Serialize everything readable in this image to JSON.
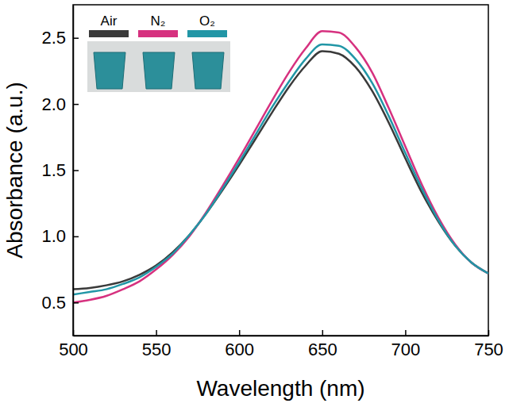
{
  "chart_data": {
    "type": "line",
    "x_label": "Wavelength (nm)",
    "y_label": "Absorbance (a.u.)",
    "x": [
      500,
      510,
      520,
      530,
      540,
      550,
      560,
      570,
      580,
      590,
      600,
      610,
      620,
      630,
      640,
      650,
      660,
      670,
      680,
      690,
      700,
      710,
      720,
      730,
      740,
      750
    ],
    "series": [
      {
        "name": "Air",
        "color": "#3a3a3a",
        "values": [
          0.6,
          0.61,
          0.63,
          0.66,
          0.71,
          0.78,
          0.88,
          1.01,
          1.17,
          1.35,
          1.54,
          1.74,
          1.94,
          2.13,
          2.29,
          2.4,
          2.38,
          2.28,
          2.1,
          1.86,
          1.59,
          1.33,
          1.11,
          0.93,
          0.8,
          0.72
        ]
      },
      {
        "name": "N₂",
        "color": "#d6317f",
        "values": [
          0.5,
          0.52,
          0.55,
          0.6,
          0.66,
          0.75,
          0.86,
          1.0,
          1.18,
          1.38,
          1.59,
          1.81,
          2.03,
          2.24,
          2.42,
          2.55,
          2.54,
          2.43,
          2.24,
          1.97,
          1.68,
          1.39,
          1.14,
          0.94,
          0.8,
          0.72
        ]
      },
      {
        "name": "O₂",
        "color": "#2196a6",
        "values": [
          0.56,
          0.58,
          0.6,
          0.64,
          0.69,
          0.77,
          0.87,
          1.01,
          1.17,
          1.36,
          1.56,
          1.77,
          1.98,
          2.17,
          2.34,
          2.45,
          2.44,
          2.34,
          2.16,
          1.91,
          1.63,
          1.36,
          1.12,
          0.93,
          0.8,
          0.72
        ]
      }
    ],
    "xlim": [
      500,
      750
    ],
    "xticks": [
      500,
      550,
      600,
      650,
      700,
      750
    ],
    "ylim": [
      0.25,
      2.75
    ],
    "yticks": [
      0.5,
      {
        "value": 1,
        "label": "1.0"
      },
      1.5,
      {
        "value": 2,
        "label": "2.0"
      },
      2.5
    ],
    "legend": "upper left"
  }
}
